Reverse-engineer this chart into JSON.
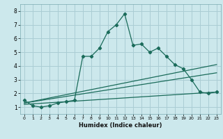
{
  "title": "",
  "xlabel": "Humidex (Indice chaleur)",
  "bg_color": "#cce8ec",
  "grid_color": "#aacdd4",
  "line_color": "#1a6b5a",
  "xlim": [
    -0.5,
    23.5
  ],
  "ylim": [
    0.5,
    8.5
  ],
  "xticks": [
    0,
    1,
    2,
    3,
    4,
    5,
    6,
    7,
    8,
    9,
    10,
    11,
    12,
    13,
    14,
    15,
    16,
    17,
    18,
    19,
    20,
    21,
    22,
    23
  ],
  "yticks": [
    1,
    2,
    3,
    4,
    5,
    6,
    7,
    8
  ],
  "series1_x": [
    0,
    1,
    2,
    3,
    4,
    5,
    6,
    7,
    8,
    9,
    10,
    11,
    12,
    13,
    14,
    15,
    16,
    17,
    18,
    19,
    20,
    21,
    22,
    23
  ],
  "series1_y": [
    1.5,
    1.1,
    1.0,
    1.1,
    1.3,
    1.4,
    1.5,
    4.7,
    4.7,
    5.3,
    6.5,
    7.0,
    7.8,
    5.5,
    5.6,
    5.0,
    5.3,
    4.7,
    4.1,
    3.8,
    3.0,
    2.1,
    2.0,
    2.1
  ],
  "series2_x": [
    0,
    23
  ],
  "series2_y": [
    1.3,
    4.1
  ],
  "series3_x": [
    0,
    23
  ],
  "series3_y": [
    1.3,
    3.5
  ],
  "series4_x": [
    0,
    23
  ],
  "series4_y": [
    1.2,
    2.1
  ]
}
